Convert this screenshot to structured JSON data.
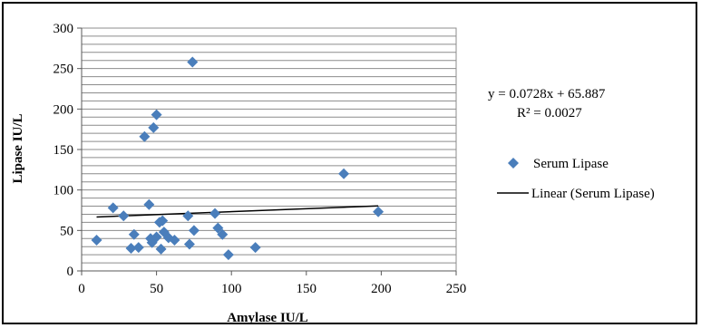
{
  "chart_data": {
    "type": "scatter",
    "xlabel": "Amylase IU/L",
    "ylabel": "Lipase IU/L",
    "xlim": [
      0,
      250
    ],
    "ylim": [
      0,
      300
    ],
    "x_ticks": [
      "0",
      "50",
      "100",
      "150",
      "200",
      "250"
    ],
    "y_ticks": [
      "0",
      "50",
      "100",
      "150",
      "200",
      "250",
      "300"
    ],
    "grid": "horizontal",
    "legend_position": "right",
    "series": [
      {
        "name": "Serum Lipase",
        "color": "#4a7ebb",
        "marker": "diamond",
        "points": [
          {
            "x": 10,
            "y": 38
          },
          {
            "x": 21,
            "y": 78
          },
          {
            "x": 28,
            "y": 68
          },
          {
            "x": 33,
            "y": 28
          },
          {
            "x": 35,
            "y": 45
          },
          {
            "x": 38,
            "y": 29
          },
          {
            "x": 42,
            "y": 166
          },
          {
            "x": 45,
            "y": 82
          },
          {
            "x": 46,
            "y": 40
          },
          {
            "x": 47,
            "y": 35
          },
          {
            "x": 48,
            "y": 177
          },
          {
            "x": 50,
            "y": 193
          },
          {
            "x": 50,
            "y": 42
          },
          {
            "x": 52,
            "y": 60
          },
          {
            "x": 53,
            "y": 27
          },
          {
            "x": 54,
            "y": 62
          },
          {
            "x": 55,
            "y": 48
          },
          {
            "x": 58,
            "y": 41
          },
          {
            "x": 62,
            "y": 38
          },
          {
            "x": 71,
            "y": 68
          },
          {
            "x": 72,
            "y": 33
          },
          {
            "x": 74,
            "y": 258
          },
          {
            "x": 75,
            "y": 50
          },
          {
            "x": 89,
            "y": 71
          },
          {
            "x": 91,
            "y": 53
          },
          {
            "x": 94,
            "y": 45
          },
          {
            "x": 98,
            "y": 20
          },
          {
            "x": 116,
            "y": 29
          },
          {
            "x": 175,
            "y": 120
          },
          {
            "x": 198,
            "y": 73
          }
        ]
      },
      {
        "name": "Linear (Serum Lipase)",
        "color": "#000000",
        "type": "line",
        "slope": 0.0728,
        "intercept": 65.887,
        "x_range": [
          10,
          198
        ]
      }
    ],
    "annotations": {
      "equation": "y = 0.0728x + 65.887",
      "r_squared": "R² = 0.0027"
    }
  }
}
